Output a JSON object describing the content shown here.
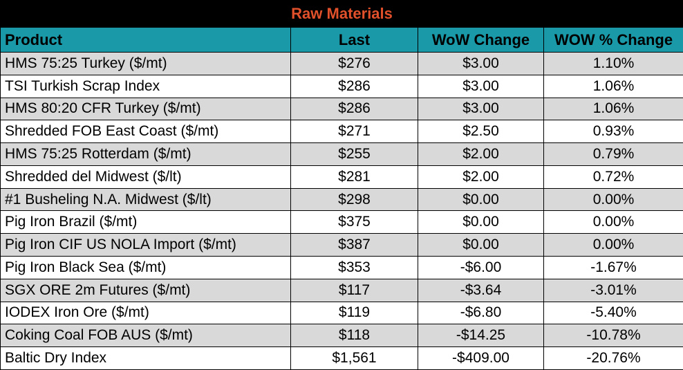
{
  "title": "Raw Materials",
  "headers": {
    "product": "Product",
    "last": "Last",
    "wow_change": "WoW Change",
    "wow_pct_change": "WOW % Change"
  },
  "rows": [
    {
      "product": "HMS 75:25 Turkey ($/mt)",
      "last": "$276",
      "wow_change": "$3.00",
      "wow_pct": "1.10%"
    },
    {
      "product": "TSI Turkish Scrap Index",
      "last": "$286",
      "wow_change": "$3.00",
      "wow_pct": "1.06%"
    },
    {
      "product": "HMS 80:20 CFR Turkey ($/mt)",
      "last": "$286",
      "wow_change": "$3.00",
      "wow_pct": "1.06%"
    },
    {
      "product": "Shredded FOB East Coast ($/mt)",
      "last": "$271",
      "wow_change": "$2.50",
      "wow_pct": "0.93%"
    },
    {
      "product": "HMS 75:25 Rotterdam ($/mt)",
      "last": "$255",
      "wow_change": "$2.00",
      "wow_pct": "0.79%"
    },
    {
      "product": "Shredded del  Midwest ($/lt)",
      "last": "$281",
      "wow_change": "$2.00",
      "wow_pct": "0.72%"
    },
    {
      "product": "#1 Busheling N.A. Midwest ($/lt)",
      "last": "$298",
      "wow_change": "$0.00",
      "wow_pct": "0.00%"
    },
    {
      "product": "Pig Iron Brazil ($/mt)",
      "last": "$375",
      "wow_change": "$0.00",
      "wow_pct": "0.00%"
    },
    {
      "product": "Pig Iron CIF US NOLA Import ($/mt)",
      "last": "$387",
      "wow_change": "$0.00",
      "wow_pct": "0.00%"
    },
    {
      "product": "Pig Iron Black Sea ($/mt)",
      "last": "$353",
      "wow_change": "-$6.00",
      "wow_pct": "-1.67%"
    },
    {
      "product": "SGX ORE 2m Futures ($/mt)",
      "last": "$117",
      "wow_change": "-$3.64",
      "wow_pct": "-3.01%"
    },
    {
      "product": "IODEX  Iron Ore ($/mt)",
      "last": "$119",
      "wow_change": "-$6.80",
      "wow_pct": "-5.40%"
    },
    {
      "product": "Coking Coal FOB AUS ($/mt)",
      "last": "$118",
      "wow_change": "-$14.25",
      "wow_pct": "-10.78%"
    },
    {
      "product": "Baltic Dry Index",
      "last": "$1,561",
      "wow_change": "-$409.00",
      "wow_pct": "-20.76%"
    }
  ],
  "colors": {
    "title_bg": "#000000",
    "title_text": "#e0502a",
    "header_bg": "#1a9aa8",
    "shade_row": "#d9d9d9"
  }
}
